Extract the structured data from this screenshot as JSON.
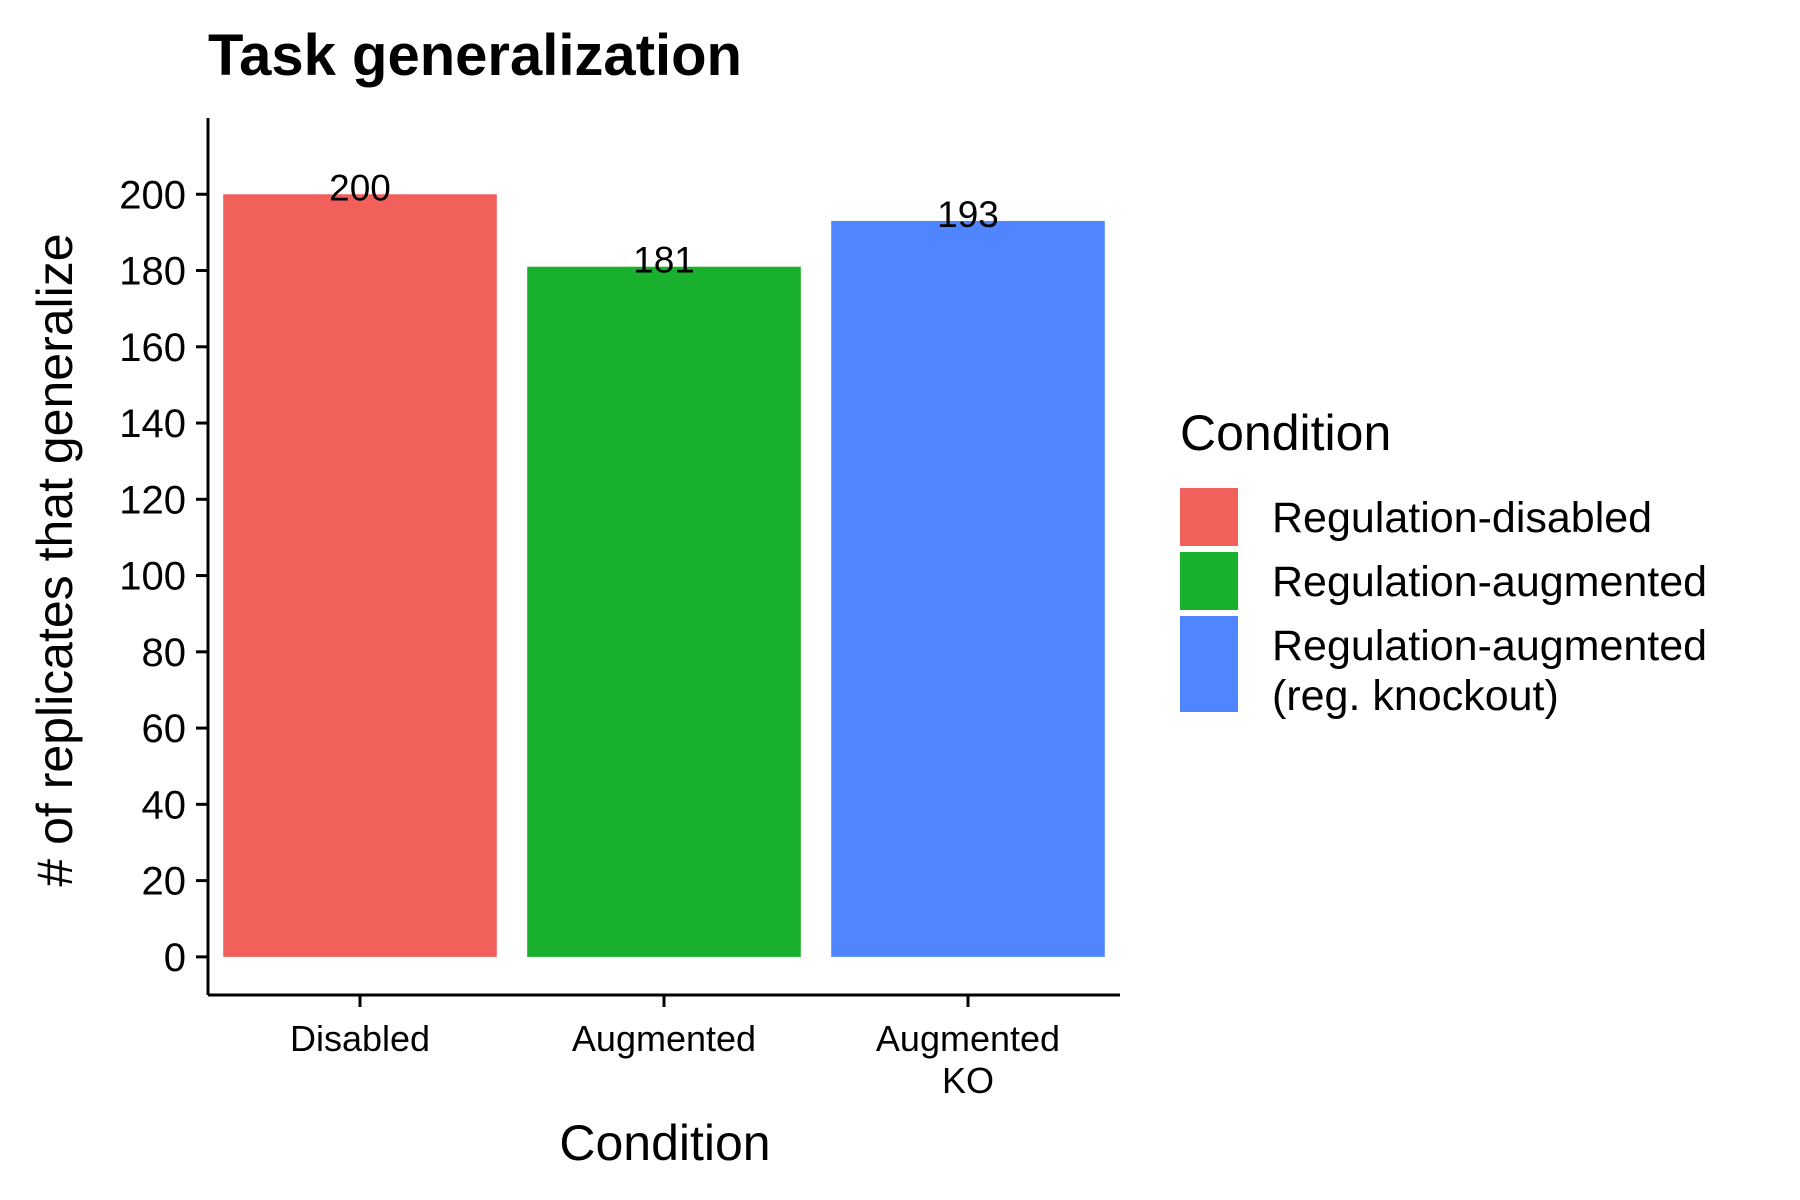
{
  "chart_data": {
    "type": "bar",
    "title": "Task generalization",
    "xlabel": "Condition",
    "ylabel": "# of replicates that generalize",
    "categories": [
      [
        "Disabled"
      ],
      [
        "Augmented"
      ],
      [
        "Augmented",
        "KO"
      ]
    ],
    "values": [
      200,
      181,
      193
    ],
    "data_labels": [
      "200",
      "181",
      "193"
    ],
    "bar_colors": [
      "#F2605C",
      "#19B02D",
      "#4F86FF"
    ],
    "ylim": [
      -10,
      220
    ],
    "yticks": [
      0,
      20,
      40,
      60,
      80,
      100,
      120,
      140,
      160,
      180,
      200
    ],
    "grid": false,
    "legend": {
      "title": "Condition",
      "placement": "right",
      "entries": [
        {
          "lines": [
            "Regulation-disabled"
          ],
          "color": "#F2605C"
        },
        {
          "lines": [
            "Regulation-augmented"
          ],
          "color": "#19B02D"
        },
        {
          "lines": [
            "Regulation-augmented",
            "(reg. knockout)"
          ],
          "color": "#4F86FF"
        }
      ]
    }
  }
}
